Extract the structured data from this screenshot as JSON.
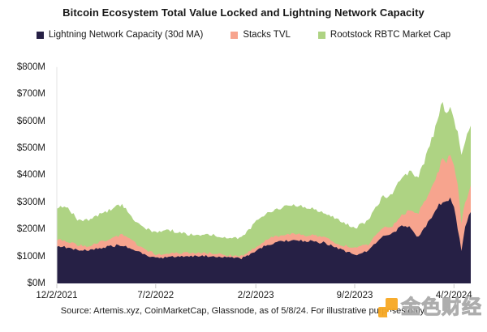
{
  "title": "Bitcoin Ecosystem Total Value Locked and Lightning Network Capacity",
  "legend": [
    {
      "label": "Lightning Network Capacity (30d MA)",
      "color": "#262045"
    },
    {
      "label": "Stacks TVL",
      "color": "#f7a48e"
    },
    {
      "label": "Rootstock RBTC Market Cap",
      "color": "#aed383"
    }
  ],
  "source_note": "Source: Artemis.xyz, CoinMarketCap, Glassnode, as of 5/8/24. For illustrative purposes only.",
  "watermark": {
    "name": "jinse-finance-watermark",
    "text": "金色财经",
    "logo_color": "#f7a823"
  },
  "chart_data": {
    "type": "area",
    "stacked": true,
    "title": "Bitcoin Ecosystem Total Value Locked and Lightning Network Capacity",
    "xlabel": "",
    "ylabel": "",
    "ylim": [
      0,
      800
    ],
    "y_tick_labels": [
      "$0M",
      "$100M",
      "$200M",
      "$300M",
      "$400M",
      "$500M",
      "$600M",
      "$700M",
      "$800M"
    ],
    "x_tick_labels": [
      "12/2/2021",
      "7/2/2022",
      "2/2/2023",
      "9/2/2023",
      "4/2/2024"
    ],
    "x_range": [
      "12/2/2021",
      "5/8/2024"
    ],
    "grid": false,
    "legend_position": "top",
    "dates": [
      "12/2/2021",
      "12/20/2021",
      "1/15/2022",
      "2/5/2022",
      "3/1/2022",
      "4/1/2022",
      "4/20/2022",
      "5/15/2022",
      "6/10/2022",
      "7/2/2022",
      "8/1/2022",
      "9/1/2022",
      "10/1/2022",
      "11/1/2022",
      "12/1/2022",
      "1/1/2023",
      "1/20/2023",
      "2/2/2023",
      "3/1/2023",
      "4/1/2023",
      "5/1/2023",
      "6/1/2023",
      "7/1/2023",
      "8/1/2023",
      "9/2/2023",
      "10/1/2023",
      "11/1/2023",
      "11/20/2023",
      "12/10/2023",
      "1/1/2024",
      "1/15/2024",
      "2/1/2024",
      "2/15/2024",
      "3/1/2024",
      "3/8/2024",
      "3/17/2024",
      "3/26/2024",
      "4/2/2024",
      "4/10/2024",
      "4/18/2024",
      "4/25/2024",
      "5/8/2024"
    ],
    "series": [
      {
        "name": "Lightning Network Capacity (30d MA)",
        "color": "#262045",
        "values": [
          140,
          134,
          124,
          121,
          130,
          138,
          142,
          124,
          106,
          92,
          98,
          100,
          102,
          100,
          95,
          92,
          105,
          122,
          145,
          155,
          158,
          155,
          150,
          128,
          105,
          118,
          175,
          181,
          210,
          205,
          172,
          210,
          245,
          292,
          300,
          305,
          315,
          290,
          205,
          121,
          200,
          268
        ]
      },
      {
        "name": "Stacks TVL",
        "color": "#f7a48e",
        "values": [
          22,
          22,
          18,
          17,
          22,
          30,
          40,
          30,
          20,
          15,
          14,
          13,
          12,
          12,
          10,
          10,
          12,
          14,
          20,
          24,
          24,
          22,
          20,
          17,
          24,
          27,
          30,
          27,
          40,
          70,
          85,
          95,
          110,
          128,
          168,
          145,
          160,
          150,
          158,
          100,
          95,
          95
        ]
      },
      {
        "name": "Rootstock RBTC Market Cap",
        "color": "#aed383",
        "values": [
          118,
          130,
          96,
          97,
          102,
          106,
          112,
          84,
          80,
          80,
          85,
          72,
          62,
          68,
          60,
          68,
          83,
          94,
          95,
          101,
          106,
          101,
          88,
          88,
          73,
          90,
          115,
          115,
          134,
          145,
          133,
          160,
          180,
          196,
          212,
          168,
          182,
          158,
          196,
          258,
          228,
          215
        ]
      }
    ]
  }
}
